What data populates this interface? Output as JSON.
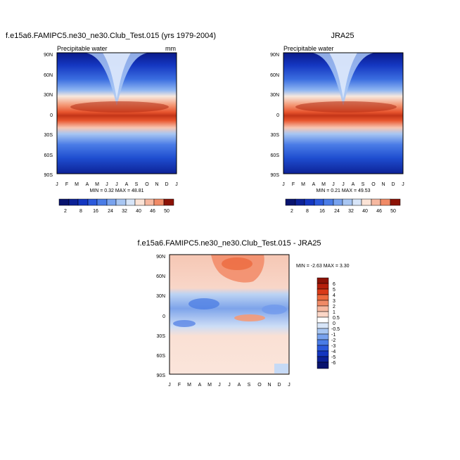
{
  "panel_left": {
    "title": "f.e15a6.FAMIPC5.ne30_ne30.Club_Test.015 (yrs 1979-2004)",
    "left_string": "Precipitable water",
    "right_string": "mm",
    "min_max": "MIN =  0.32 MAX =  48.81"
  },
  "panel_right": {
    "title": "JRA25",
    "left_string": "Precipitable water",
    "min_max": "MIN =  0.21 MAX =  49.53"
  },
  "panel_diff": {
    "title": "f.e15a6.FAMIPC5.ne30_ne30.Club_Test.015 - JRA25",
    "min_max": "MIN =  -2.63 MAX =   3.30"
  },
  "axes": {
    "x_ticks": [
      "J",
      "F",
      "M",
      "A",
      "M",
      "J",
      "J",
      "A",
      "S",
      "O",
      "N",
      "D",
      "J"
    ],
    "y_ticks": [
      "90N",
      "60N",
      "30N",
      "0",
      "30S",
      "60S",
      "90S"
    ]
  },
  "colorbars": {
    "top_labels": [
      "2",
      "8",
      "16",
      "24",
      "32",
      "40",
      "46",
      "50"
    ],
    "diff_labels": [
      "6",
      "5",
      "4",
      "3",
      "2",
      "1",
      "0.5",
      "0",
      "-0.5",
      "-1",
      "-2",
      "-3",
      "-4",
      "-5",
      "-6"
    ]
  },
  "chart_data": [
    {
      "type": "heatmap",
      "title": "f.e15a6.FAMIPC5.ne30_ne30.Club_Test.015 (yrs 1979-2004)",
      "variable": "Precipitable water",
      "units": "mm",
      "x": [
        "J",
        "F",
        "M",
        "A",
        "M",
        "J",
        "J",
        "A",
        "S",
        "O",
        "N",
        "D",
        "J"
      ],
      "y_range": [
        -90,
        90
      ],
      "levels": [
        2,
        4,
        6,
        8,
        10,
        12,
        16,
        20,
        24,
        28,
        32,
        36,
        40,
        44,
        46,
        48,
        50
      ],
      "min": 0.32,
      "max": 48.81
    },
    {
      "type": "heatmap",
      "title": "JRA25",
      "variable": "Precipitable water",
      "x": [
        "J",
        "F",
        "M",
        "A",
        "M",
        "J",
        "J",
        "A",
        "S",
        "O",
        "N",
        "D",
        "J"
      ],
      "y_range": [
        -90,
        90
      ],
      "levels": [
        2,
        4,
        6,
        8,
        10,
        12,
        16,
        20,
        24,
        28,
        32,
        36,
        40,
        44,
        46,
        48,
        50
      ],
      "min": 0.21,
      "max": 49.53
    },
    {
      "type": "heatmap",
      "title": "f.e15a6.FAMIPC5.ne30_ne30.Club_Test.015 - JRA25",
      "x": [
        "J",
        "F",
        "M",
        "A",
        "M",
        "J",
        "J",
        "A",
        "S",
        "O",
        "N",
        "D",
        "J"
      ],
      "y_range": [
        -90,
        90
      ],
      "levels": [
        -6,
        -5,
        -4,
        -3,
        -2,
        -1,
        -0.5,
        0,
        0.5,
        1,
        2,
        3,
        4,
        5,
        6
      ],
      "min": -2.63,
      "max": 3.3
    }
  ]
}
